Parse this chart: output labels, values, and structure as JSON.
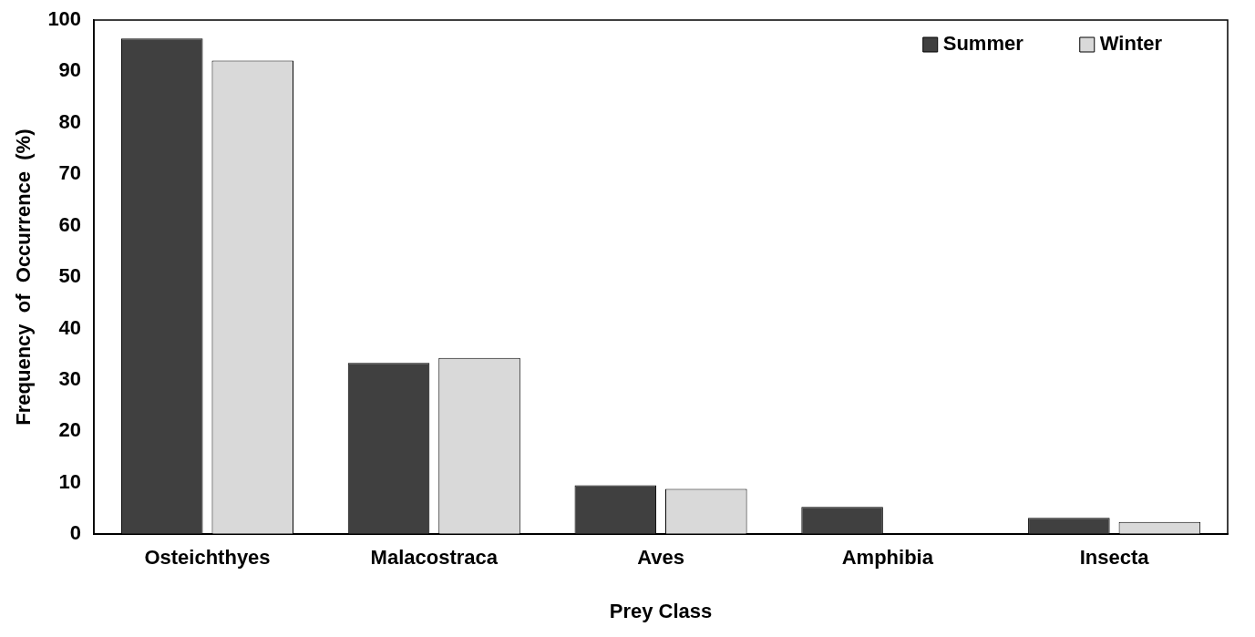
{
  "chart_data": {
    "type": "bar",
    "xlabel": "Prey Class",
    "ylabel": "Frequency  of  Occurrence  (%)",
    "categories": [
      "Osteichthyes",
      "Malacostraca",
      "Aves",
      "Amphibia",
      "Insecta"
    ],
    "series": [
      {
        "name": "Summer",
        "color": "#404040",
        "values": [
          96.4,
          33.3,
          9.5,
          5.3,
          3.2
        ]
      },
      {
        "name": "Winter",
        "color": "#d9d9d9",
        "values": [
          92.1,
          34.3,
          8.8,
          0,
          2.4
        ]
      }
    ],
    "ylim": [
      0,
      100
    ],
    "yticks": [
      0,
      10,
      20,
      30,
      40,
      50,
      60,
      70,
      80,
      90,
      100
    ],
    "grid": false,
    "legend": "top right"
  }
}
